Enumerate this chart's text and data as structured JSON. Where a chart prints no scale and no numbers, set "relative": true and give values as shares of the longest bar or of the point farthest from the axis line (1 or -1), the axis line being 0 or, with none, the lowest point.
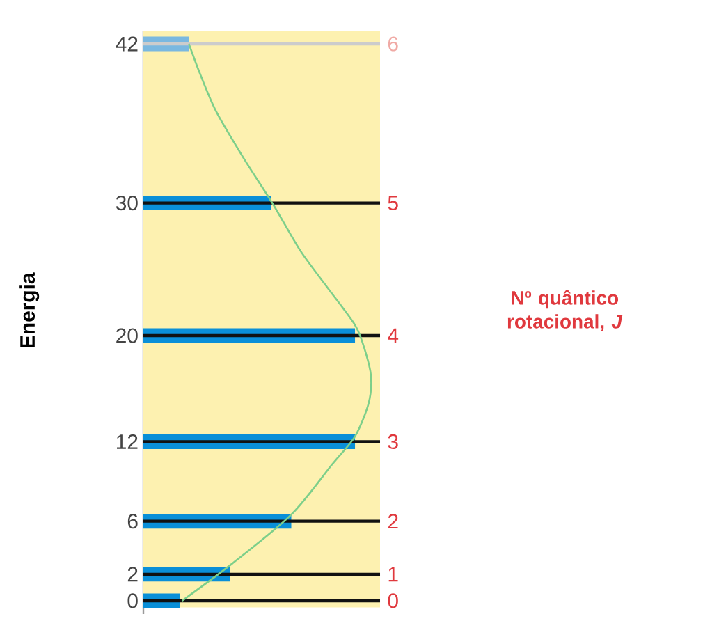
{
  "chart_data": {
    "type": "bar",
    "orientation": "horizontal",
    "relative": true,
    "ylabel": "Energia",
    "ylim": [
      -1,
      43
    ],
    "yticks": [
      0,
      2,
      6,
      12,
      20,
      30,
      42
    ],
    "annotations": [
      "0",
      "1",
      "2",
      "3",
      "4",
      "5",
      "6",
      "Nº quântico rotacional, *J*"
    ],
    "x": [
      0,
      2,
      6,
      12,
      20,
      30,
      42
    ],
    "series": [
      {
        "values": [
          0.16,
          0.38,
          0.65,
          0.93,
          0.93,
          0.56,
          0.2
        ],
        "colors": [
          "#0a8fd8",
          "#0a8fd8",
          "#0a8fd8",
          "#0a8fd8",
          "#0a8fd8",
          "#0a8fd8",
          "#7ab8e0"
        ]
      },
      {
        "type": "line",
        "color": "#7dcf8a",
        "marker": "none",
        "x": [
          0,
          2.8,
          6.5,
          10.3,
          12.4,
          14.9,
          17,
          19.1,
          20.8,
          23.6,
          26.4,
          29.9,
          33.4,
          36.9,
          39.7,
          42
        ],
        "values": [
          0.17,
          0.39,
          0.65,
          0.83,
          0.93,
          0.99,
          1.0,
          0.97,
          0.93,
          0.81,
          0.69,
          0.57,
          0.44,
          0.32,
          0.25,
          0.2
        ]
      }
    ],
    "ref_lines": [
      {
        "axis": "y",
        "value": 0,
        "color": "#111111"
      },
      {
        "axis": "y",
        "value": 2,
        "color": "#111111"
      },
      {
        "axis": "y",
        "value": 6,
        "color": "#111111"
      },
      {
        "axis": "y",
        "value": 12,
        "color": "#111111"
      },
      {
        "axis": "y",
        "value": 20,
        "color": "#111111"
      },
      {
        "axis": "y",
        "value": 30,
        "color": "#111111"
      },
      {
        "axis": "y",
        "value": 42,
        "color": "#cccccc"
      }
    ],
    "bands": [
      {
        "axis": "y",
        "from": -0.5,
        "to": 43,
        "color": "#fdf1b0"
      }
    ]
  }
}
